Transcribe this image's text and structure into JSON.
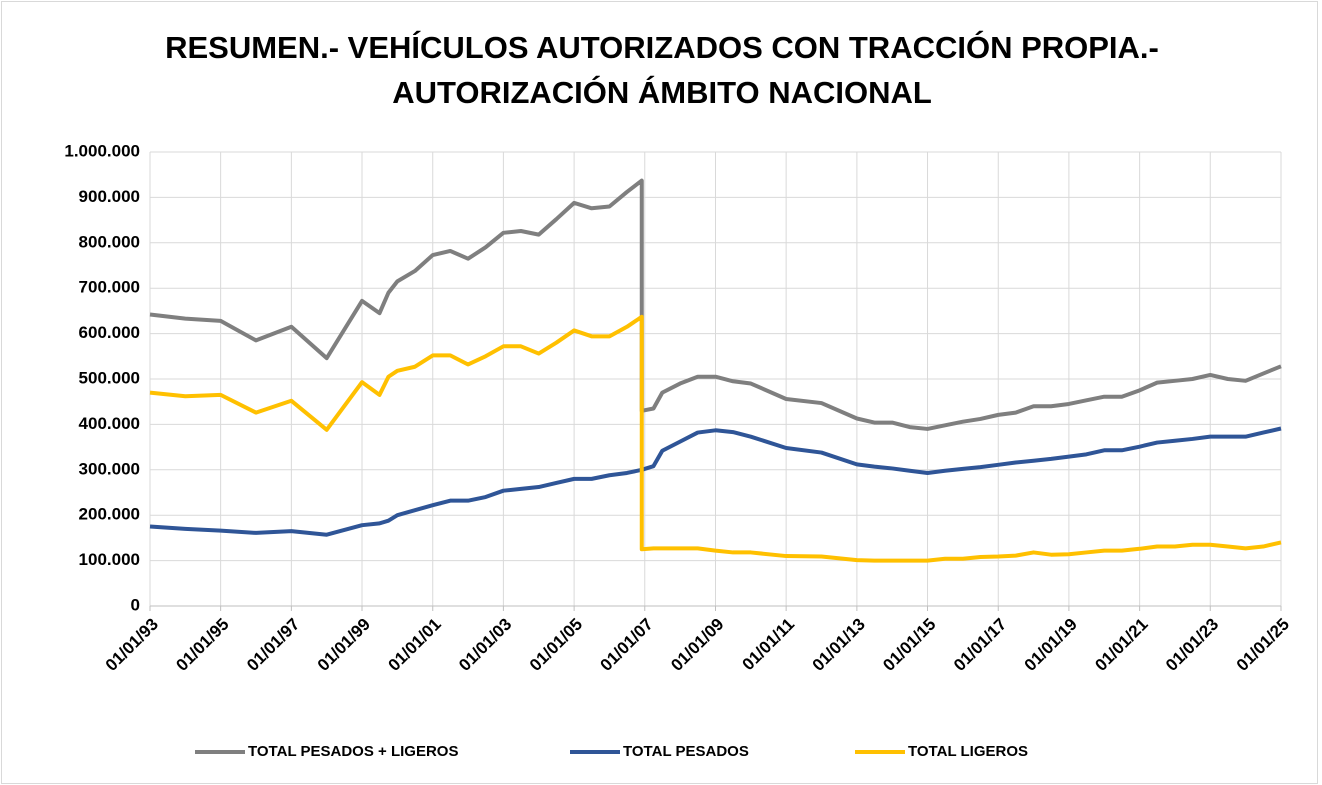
{
  "chart_data": {
    "type": "line",
    "title": [
      "RESUMEN.- VEHÍCULOS AUTORIZADOS CON TRACCIÓN PROPIA.-",
      "AUTORIZACIÓN ÁMBITO NACIONAL"
    ],
    "x": [
      "1993-01-01",
      "1994-01-01",
      "1995-01-01",
      "1996-01-01",
      "1997-01-01",
      "1998-01-01",
      "1999-01-01",
      "1999-07-01",
      "1999-10-01",
      "2000-01-01",
      "2000-07-01",
      "2001-01-01",
      "2001-07-01",
      "2002-01-01",
      "2002-07-01",
      "2003-01-01",
      "2003-07-01",
      "2004-01-01",
      "2004-07-01",
      "2005-01-01",
      "2005-07-01",
      "2006-01-01",
      "2006-07-01",
      "2006-12-01",
      "2006-12-01",
      "2007-04-01",
      "2007-07-01",
      "2008-01-01",
      "2008-07-01",
      "2009-01-01",
      "2009-07-01",
      "2010-01-01",
      "2011-01-01",
      "2012-01-01",
      "2013-01-01",
      "2013-07-01",
      "2014-01-01",
      "2014-07-01",
      "2015-01-01",
      "2015-07-01",
      "2016-01-01",
      "2016-07-01",
      "2017-01-01",
      "2017-07-01",
      "2018-01-01",
      "2018-07-01",
      "2019-01-01",
      "2019-07-01",
      "2020-01-01",
      "2020-07-01",
      "2021-01-01",
      "2021-07-01",
      "2022-01-01",
      "2022-07-01",
      "2023-01-01",
      "2023-07-01",
      "2024-01-01",
      "2024-07-01",
      "2025-01-01"
    ],
    "series": [
      {
        "name": "TOTAL PESADOS + LIGEROS",
        "color": "#7f7f7f",
        "values": [
          642000,
          633000,
          628000,
          585000,
          615000,
          546000,
          672000,
          645000,
          690000,
          715000,
          738000,
          773000,
          782000,
          765000,
          790000,
          822000,
          826000,
          818000,
          852000,
          888000,
          876000,
          880000,
          912000,
          937000,
          430000,
          435000,
          470000,
          490000,
          505000,
          505000,
          495000,
          490000,
          456000,
          447000,
          413000,
          404000,
          404000,
          394000,
          390000,
          398000,
          406000,
          412000,
          421000,
          426000,
          440000,
          440000,
          445000,
          453000,
          461000,
          461000,
          475000,
          492000,
          496000,
          500000,
          509000,
          500000,
          496000,
          512000,
          528000
        ]
      },
      {
        "name": "TOTAL PESADOS",
        "color": "#2f5597",
        "values": [
          175000,
          170000,
          166000,
          161000,
          165000,
          157000,
          178000,
          182000,
          188000,
          200000,
          211000,
          222000,
          232000,
          232000,
          240000,
          254000,
          258000,
          262000,
          271000,
          280000,
          280000,
          288000,
          293000,
          300000,
          300000,
          308000,
          342000,
          362000,
          382000,
          387000,
          383000,
          373000,
          348000,
          338000,
          312000,
          307000,
          303000,
          298000,
          293000,
          298000,
          302000,
          306000,
          311000,
          316000,
          320000,
          324000,
          329000,
          334000,
          343000,
          343000,
          351000,
          360000,
          364000,
          368000,
          373000,
          373000,
          373000,
          382000,
          391000
        ]
      },
      {
        "name": "TOTAL LIGEROS",
        "color": "#ffc000",
        "values": [
          470000,
          462000,
          465000,
          426000,
          452000,
          388000,
          493000,
          465000,
          505000,
          518000,
          527000,
          552000,
          552000,
          532000,
          550000,
          572000,
          572000,
          556000,
          580000,
          607000,
          594000,
          594000,
          615000,
          637000,
          125000,
          127000,
          127000,
          127000,
          127000,
          122000,
          118000,
          118000,
          110000,
          109000,
          101000,
          100000,
          100000,
          100000,
          100000,
          104000,
          104000,
          108000,
          109000,
          111000,
          118000,
          113000,
          114000,
          118000,
          122000,
          122000,
          126000,
          131000,
          131000,
          135000,
          135000,
          131000,
          127000,
          131000,
          140000
        ]
      }
    ],
    "xlim": [
      "1993-01-01",
      "2025-01-01"
    ],
    "xticks": [
      {
        "value": "1993-01-01",
        "label": "01/01/93"
      },
      {
        "value": "1995-01-01",
        "label": "01/01/95"
      },
      {
        "value": "1997-01-01",
        "label": "01/01/97"
      },
      {
        "value": "1999-01-01",
        "label": "01/01/99"
      },
      {
        "value": "2001-01-01",
        "label": "01/01/01"
      },
      {
        "value": "2003-01-01",
        "label": "01/01/03"
      },
      {
        "value": "2005-01-01",
        "label": "01/01/05"
      },
      {
        "value": "2007-01-01",
        "label": "01/01/07"
      },
      {
        "value": "2009-01-01",
        "label": "01/01/09"
      },
      {
        "value": "2011-01-01",
        "label": "01/01/11"
      },
      {
        "value": "2013-01-01",
        "label": "01/01/13"
      },
      {
        "value": "2015-01-01",
        "label": "01/01/15"
      },
      {
        "value": "2017-01-01",
        "label": "01/01/17"
      },
      {
        "value": "2019-01-01",
        "label": "01/01/19"
      },
      {
        "value": "2021-01-01",
        "label": "01/01/21"
      },
      {
        "value": "2023-01-01",
        "label": "01/01/23"
      },
      {
        "value": "2025-01-01",
        "label": "01/01/25"
      }
    ],
    "ylim": [
      0,
      1000000
    ],
    "yticks": [
      0,
      {
        "value": 100000,
        "label": "100.000"
      },
      {
        "value": 200000,
        "label": "200.000"
      },
      {
        "value": 300000,
        "label": "300.000"
      },
      {
        "value": 400000,
        "label": "400.000"
      },
      {
        "value": 500000,
        "label": "500.000"
      },
      {
        "value": 600000,
        "label": "600.000"
      },
      {
        "value": 700000,
        "label": "700.000"
      },
      {
        "value": 800000,
        "label": "800.000"
      },
      {
        "value": 900000,
        "label": "900.000"
      },
      {
        "value": 1000000,
        "label": "1.000.000"
      }
    ],
    "grid": true,
    "legend": "bottom"
  }
}
